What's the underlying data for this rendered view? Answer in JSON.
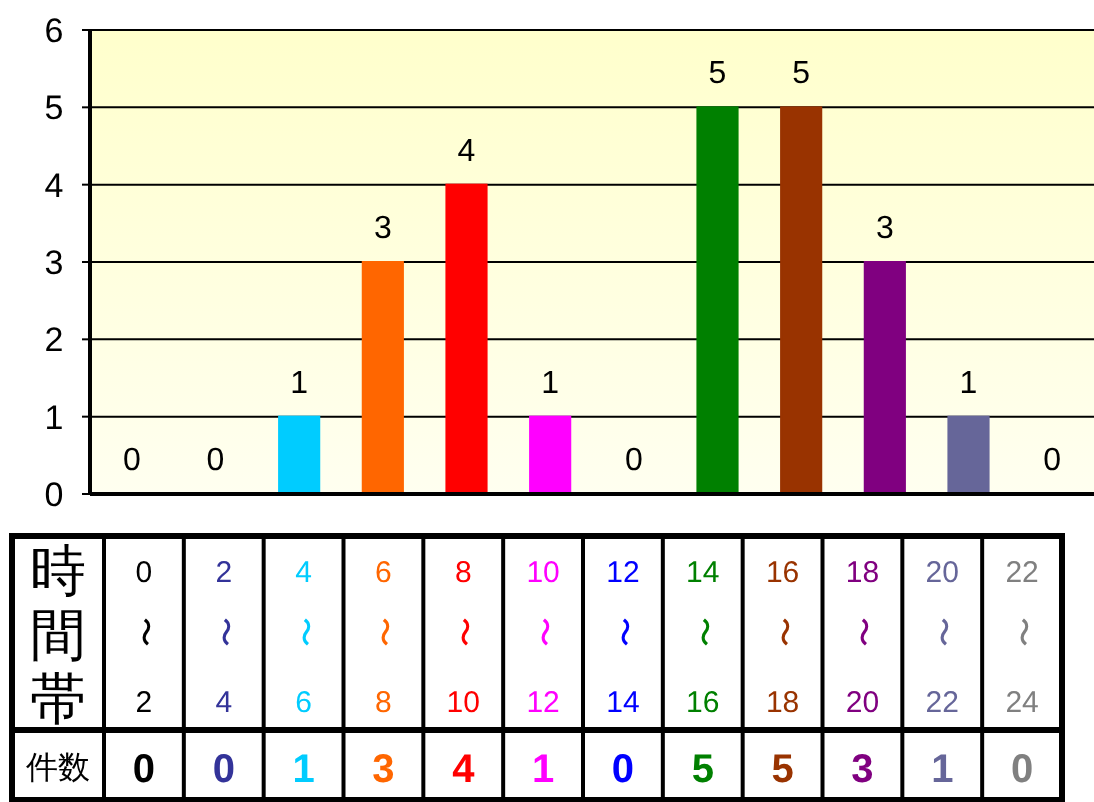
{
  "chart_data": {
    "type": "bar",
    "xlabel": "時間帯",
    "annotations": [
      "件数",
      "0",
      "0",
      "1",
      "3",
      "4",
      "1",
      "0",
      "5",
      "5",
      "3",
      "1",
      "0"
    ],
    "categories": [
      "0〜2",
      "2〜4",
      "4〜6",
      "6〜8",
      "8〜10",
      "10〜12",
      "12〜14",
      "14〜16",
      "16〜18",
      "18〜20",
      "20〜22",
      "22〜24"
    ],
    "values": [
      0,
      0,
      1,
      3,
      4,
      1,
      0,
      5,
      5,
      3,
      1,
      0
    ],
    "value_labels": [
      "0",
      "0",
      "1",
      "3",
      "4",
      "1",
      "0",
      "5",
      "5",
      "3",
      "1",
      "0"
    ],
    "colors": [
      "#000000",
      "#333399",
      "#00ccff",
      "#ff6600",
      "#ff0000",
      "#ff00ff",
      "#0000ff",
      "#008000",
      "#993300",
      "#800080",
      "#666699",
      "#808080"
    ],
    "ylim": [
      0,
      6
    ],
    "yticks": [
      0,
      1,
      2,
      3,
      4,
      5,
      6
    ],
    "grid": "y"
  }
}
